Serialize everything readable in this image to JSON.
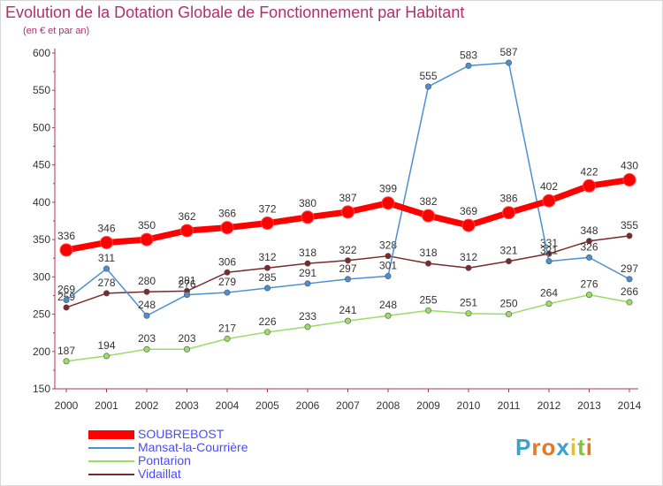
{
  "chart_data": {
    "type": "line",
    "title": "Evolution de la Dotation Globale de Fonctionnement par Habitant",
    "subtitle": "(en € et par an)",
    "xlabel": "",
    "ylabel": "",
    "categories": [
      "2000",
      "2001",
      "2002",
      "2003",
      "2004",
      "2005",
      "2006",
      "2007",
      "2008",
      "2009",
      "2010",
      "2011",
      "2012",
      "2013",
      "2014"
    ],
    "ylim": [
      150,
      600
    ],
    "yticks": [
      150,
      200,
      250,
      300,
      350,
      400,
      450,
      500,
      550,
      600
    ],
    "grid": false,
    "legend_position": "bottom-left",
    "series": [
      {
        "name": "SOUBREBOST",
        "color": "#ff0000",
        "text_color": "#4a4aff",
        "values": [
          336,
          346,
          350,
          362,
          366,
          372,
          380,
          387,
          399,
          382,
          369,
          386,
          402,
          422,
          430
        ]
      },
      {
        "name": "Mansat-la-Courrière",
        "color": "#4a90d0",
        "text_color": "#4a4aff",
        "values": [
          269,
          311,
          248,
          276,
          279,
          285,
          291,
          297,
          301,
          555,
          583,
          587,
          321,
          326,
          297
        ]
      },
      {
        "name": "Pontarion",
        "color": "#99dd66",
        "text_color": "#4a4aff",
        "values": [
          187,
          194,
          203,
          203,
          217,
          226,
          233,
          241,
          248,
          255,
          251,
          250,
          264,
          276,
          266
        ]
      },
      {
        "name": "Vidaillat",
        "color": "#7a2a2a",
        "text_color": "#4a4aff",
        "values": [
          259,
          278,
          280,
          281,
          306,
          312,
          318,
          322,
          328,
          318,
          312,
          321,
          331,
          348,
          355
        ]
      }
    ]
  },
  "logo": {
    "text": "Proxiti",
    "letters": [
      "P",
      "r",
      "o",
      "x",
      "i",
      "t",
      "i"
    ],
    "colors": [
      "#3aa0d0",
      "#e07a2a",
      "#e07a2a",
      "#3aa0d0",
      "#e8c020",
      "#88c040",
      "#e07a2a"
    ]
  }
}
